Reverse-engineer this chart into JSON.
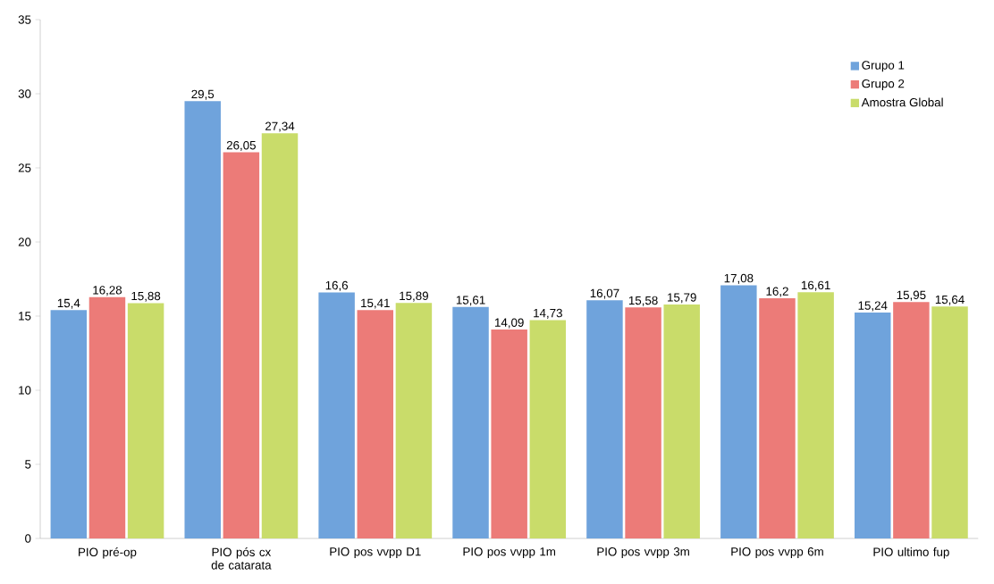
{
  "chart_data": {
    "type": "bar",
    "categories": [
      "PIO pré-op",
      "PIO pós cx de catarata",
      "PIO pos vvpp D1",
      "PIO pos vvpp 1m",
      "PIO pos vvpp 3m",
      "PIO pos vvpp 6m",
      "PIO ultimo fup"
    ],
    "series": [
      {
        "name": "Grupo 1",
        "color": "#6fa3dc",
        "values": [
          15.4,
          29.5,
          16.6,
          15.61,
          16.07,
          17.08,
          15.24
        ],
        "value_labels": [
          "15,4",
          "29,5",
          "16,6",
          "15,61",
          "16,07",
          "17,08",
          "15,24"
        ]
      },
      {
        "name": "Grupo 2",
        "color": "#ec7b78",
        "values": [
          16.28,
          26.05,
          15.41,
          14.09,
          15.58,
          16.2,
          15.95
        ],
        "value_labels": [
          "16,28",
          "26,05",
          "15,41",
          "14,09",
          "15,58",
          "16,2",
          "15,95"
        ]
      },
      {
        "name": "Amostra Global",
        "color": "#c9dc6a",
        "values": [
          15.88,
          27.34,
          15.89,
          14.73,
          15.79,
          16.61,
          15.64
        ],
        "value_labels": [
          "15,88",
          "27,34",
          "15,89",
          "14,73",
          "15,79",
          "16,61",
          "15,64"
        ]
      }
    ],
    "ylim": [
      0,
      35
    ],
    "yticks": [
      0,
      5,
      10,
      15,
      20,
      25,
      30,
      35
    ],
    "grid": false,
    "legend": "top right"
  }
}
